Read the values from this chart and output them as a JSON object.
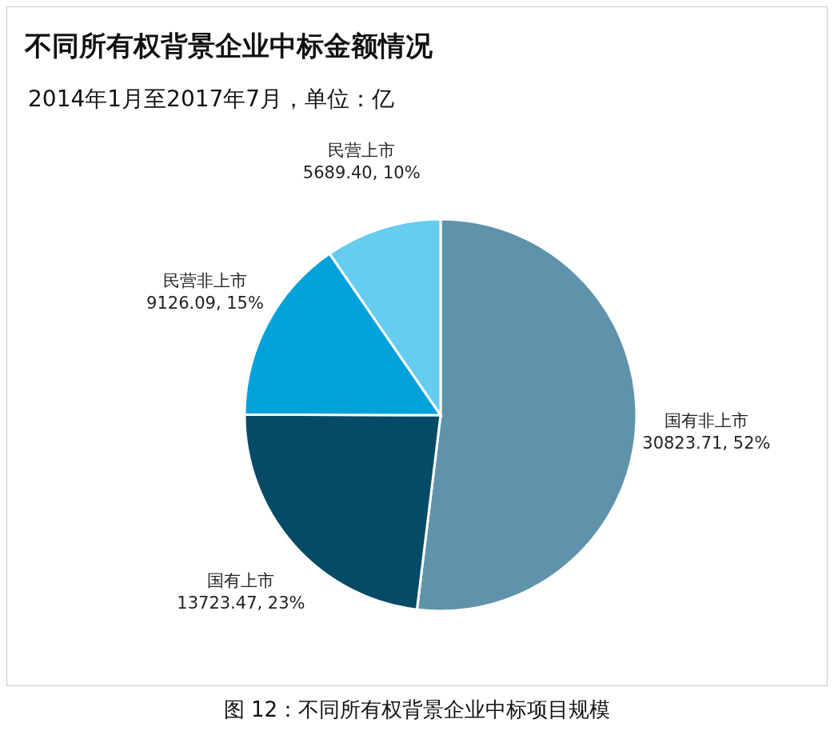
{
  "chart_data": {
    "type": "pie",
    "title": "不同所有权背景企业中标金额情况",
    "subtitle": "2014年1月至2017年7月，单位：亿",
    "categories": [
      "国有非上市",
      "国有上市",
      "民营非上市",
      "民营上市"
    ],
    "values": [
      30823.71,
      13723.47,
      9126.09,
      5689.4
    ],
    "colors": [
      "#5f93ab",
      "#054a66",
      "#00a2d9",
      "#66ccf0"
    ],
    "value_labels": [
      "30823.71, 52%",
      "13723.47, 23%",
      "9126.09, 15%",
      "5689.40, 10%"
    ],
    "annotations": [
      "图 12：不同所有权背景企业中标项目规模"
    ]
  }
}
